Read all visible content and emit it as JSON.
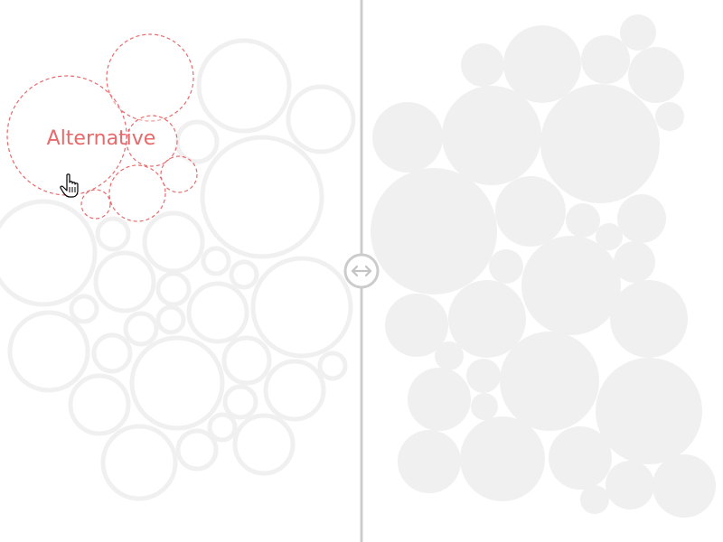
{
  "highlight": {
    "label": "Alternative",
    "color": "#e8696b"
  },
  "colors": {
    "bubble": "#f0f0f0",
    "divider": "#cccccc",
    "background": "#ffffff"
  },
  "icons": {
    "divider_handle": "double-arrow-icon",
    "cursor": "hand-pointer-icon"
  }
}
